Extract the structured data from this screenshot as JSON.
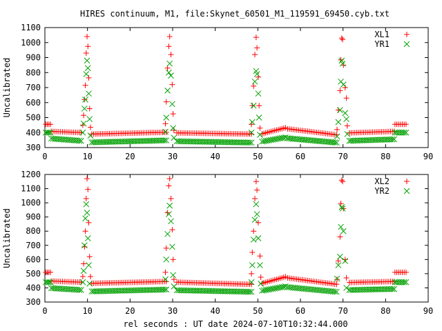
{
  "title": "HIRES continuum, M1, file:Skynet_60501_M1_119591_69450.cyb.txt",
  "xlabel": "rel seconds : UT date 2024-07-10T10:32:44.000",
  "chart_data": [
    {
      "type": "scatter",
      "title": "",
      "xlabel": "",
      "ylabel": "Uncalibrated",
      "xlim": [
        0,
        90
      ],
      "ylim": [
        300,
        1100
      ],
      "xticks": [
        "0",
        "10",
        "20",
        "30",
        "40",
        "50",
        "60",
        "70",
        "80",
        "90"
      ],
      "yticks": [
        "300",
        "400",
        "500",
        "600",
        "700",
        "800",
        "900",
        "1000",
        "1100"
      ],
      "legend_position": "top-right",
      "grid": false,
      "series": [
        {
          "name": "XL1",
          "marker": "plus",
          "color": "#ff0000",
          "segments": [
            {
              "x0": 0.2,
              "x1": 1.3,
              "y0": 455,
              "y1": 455,
              "n": 4
            },
            {
              "x0": 1.5,
              "x1": 8.5,
              "y0": 408,
              "y1": 400,
              "n": 17
            },
            {
              "x0": 11.0,
              "x1": 28.5,
              "y0": 390,
              "y1": 402,
              "n": 43
            },
            {
              "x0": 31.0,
              "x1": 48.5,
              "y0": 398,
              "y1": 390,
              "n": 43
            },
            {
              "x0": 51.0,
              "x1": 56.5,
              "y0": 392,
              "y1": 432,
              "n": 14
            },
            {
              "x0": 57.0,
              "x1": 68.5,
              "y0": 425,
              "y1": 385,
              "n": 28
            },
            {
              "x0": 71.5,
              "x1": 82.0,
              "y0": 398,
              "y1": 408,
              "n": 26
            },
            {
              "x0": 82.2,
              "x1": 84.8,
              "y0": 455,
              "y1": 455,
              "n": 7
            }
          ],
          "points": [
            [
              8.9,
              450
            ],
            [
              9.1,
              515
            ],
            [
              9.3,
              620
            ],
            [
              9.5,
              715
            ],
            [
              9.7,
              930
            ],
            [
              9.9,
              1040
            ],
            [
              10.1,
              975
            ],
            [
              10.3,
              765
            ],
            [
              10.5,
              560
            ],
            [
              10.7,
              435
            ],
            [
              28.3,
              460
            ],
            [
              28.5,
              605
            ],
            [
              28.8,
              830
            ],
            [
              29.1,
              975
            ],
            [
              29.3,
              1040
            ],
            [
              29.6,
              920
            ],
            [
              29.9,
              720
            ],
            [
              30.1,
              525
            ],
            [
              30.3,
              415
            ],
            [
              48.5,
              455
            ],
            [
              48.7,
              580
            ],
            [
              49.0,
              710
            ],
            [
              49.3,
              920
            ],
            [
              49.6,
              1035
            ],
            [
              49.8,
              965
            ],
            [
              50.1,
              770
            ],
            [
              50.3,
              580
            ],
            [
              50.5,
              430
            ],
            [
              68.6,
              420
            ],
            [
              68.9,
              550
            ],
            [
              69.3,
              680
            ],
            [
              69.5,
              885
            ],
            [
              69.7,
              1030
            ],
            [
              69.9,
              1020
            ],
            [
              70.1,
              850
            ],
            [
              70.5,
              700
            ],
            [
              70.8,
              630
            ],
            [
              71.0,
              445
            ]
          ]
        },
        {
          "name": "YR1",
          "marker": "cross",
          "color": "#00a000",
          "segments": [
            {
              "x0": 0.2,
              "x1": 1.3,
              "y0": 400,
              "y1": 400,
              "n": 4
            },
            {
              "x0": 1.5,
              "x1": 8.5,
              "y0": 360,
              "y1": 345,
              "n": 17
            },
            {
              "x0": 11.0,
              "x1": 28.5,
              "y0": 335,
              "y1": 348,
              "n": 43
            },
            {
              "x0": 31.0,
              "x1": 48.5,
              "y0": 342,
              "y1": 333,
              "n": 43
            },
            {
              "x0": 51.0,
              "x1": 56.5,
              "y0": 340,
              "y1": 368,
              "n": 14
            },
            {
              "x0": 57.0,
              "x1": 68.5,
              "y0": 362,
              "y1": 333,
              "n": 28
            },
            {
              "x0": 71.5,
              "x1": 82.0,
              "y0": 345,
              "y1": 355,
              "n": 26
            },
            {
              "x0": 82.2,
              "x1": 84.8,
              "y0": 400,
              "y1": 400,
              "n": 7
            }
          ],
          "points": [
            [
              8.9,
              400
            ],
            [
              9.1,
              460
            ],
            [
              9.3,
              560
            ],
            [
              9.5,
              620
            ],
            [
              9.7,
              790
            ],
            [
              9.9,
              880
            ],
            [
              10.1,
              830
            ],
            [
              10.3,
              660
            ],
            [
              10.5,
              490
            ],
            [
              10.7,
              380
            ],
            [
              28.3,
              405
            ],
            [
              28.5,
              500
            ],
            [
              28.8,
              680
            ],
            [
              29.1,
              800
            ],
            [
              29.3,
              860
            ],
            [
              29.6,
              780
            ],
            [
              29.9,
              590
            ],
            [
              30.1,
              430
            ],
            [
              30.3,
              365
            ],
            [
              48.5,
              400
            ],
            [
              48.7,
              470
            ],
            [
              49.0,
              580
            ],
            [
              49.3,
              740
            ],
            [
              49.6,
              810
            ],
            [
              49.8,
              790
            ],
            [
              50.1,
              660
            ],
            [
              50.3,
              500
            ],
            [
              50.5,
              385
            ],
            [
              68.6,
              375
            ],
            [
              68.9,
              470
            ],
            [
              69.3,
              550
            ],
            [
              69.5,
              740
            ],
            [
              69.7,
              880
            ],
            [
              69.9,
              860
            ],
            [
              70.1,
              720
            ],
            [
              70.5,
              530
            ],
            [
              70.8,
              490
            ],
            [
              71.0,
              390
            ]
          ]
        }
      ]
    },
    {
      "type": "scatter",
      "title": "",
      "xlabel": "",
      "ylabel": "Uncalibrated",
      "xlim": [
        0,
        90
      ],
      "ylim": [
        300,
        1200
      ],
      "xticks": [
        "0",
        "10",
        "20",
        "30",
        "40",
        "50",
        "60",
        "70",
        "80",
        "90"
      ],
      "yticks": [
        "300",
        "400",
        "500",
        "600",
        "700",
        "800",
        "900",
        "1000",
        "1100",
        "1200"
      ],
      "legend_position": "top-right",
      "grid": false,
      "series": [
        {
          "name": "XL2",
          "marker": "plus",
          "color": "#ff0000",
          "segments": [
            {
              "x0": 0.2,
              "x1": 1.3,
              "y0": 510,
              "y1": 510,
              "n": 4
            },
            {
              "x0": 1.5,
              "x1": 8.5,
              "y0": 448,
              "y1": 440,
              "n": 17
            },
            {
              "x0": 11.0,
              "x1": 28.5,
              "y0": 432,
              "y1": 445,
              "n": 43
            },
            {
              "x0": 31.0,
              "x1": 48.5,
              "y0": 440,
              "y1": 425,
              "n": 43
            },
            {
              "x0": 51.0,
              "x1": 56.5,
              "y0": 432,
              "y1": 478,
              "n": 14
            },
            {
              "x0": 57.0,
              "x1": 68.5,
              "y0": 470,
              "y1": 425,
              "n": 28
            },
            {
              "x0": 71.5,
              "x1": 82.0,
              "y0": 438,
              "y1": 445,
              "n": 26
            },
            {
              "x0": 82.2,
              "x1": 84.8,
              "y0": 510,
              "y1": 510,
              "n": 7
            }
          ],
          "points": [
            [
              8.9,
              480
            ],
            [
              9.1,
              570
            ],
            [
              9.3,
              690
            ],
            [
              9.5,
              800
            ],
            [
              9.7,
              1030
            ],
            [
              9.9,
              1170
            ],
            [
              10.1,
              1095
            ],
            [
              10.3,
              860
            ],
            [
              10.5,
              620
            ],
            [
              10.7,
              480
            ],
            [
              28.3,
              510
            ],
            [
              28.5,
              680
            ],
            [
              28.8,
              930
            ],
            [
              29.1,
              1120
            ],
            [
              29.3,
              1170
            ],
            [
              29.6,
              1030
            ],
            [
              29.9,
              810
            ],
            [
              30.1,
              600
            ],
            [
              30.3,
              460
            ],
            [
              48.5,
              500
            ],
            [
              48.7,
              650
            ],
            [
              49.0,
              800
            ],
            [
              49.3,
              1030
            ],
            [
              49.6,
              1150
            ],
            [
              49.8,
              1090
            ],
            [
              50.1,
              860
            ],
            [
              50.5,
              625
            ],
            [
              50.7,
              475
            ],
            [
              68.6,
              460
            ],
            [
              68.9,
              590
            ],
            [
              69.3,
              760
            ],
            [
              69.5,
              995
            ],
            [
              69.7,
              1160
            ],
            [
              69.9,
              1150
            ],
            [
              70.1,
              960
            ],
            [
              70.5,
              600
            ],
            [
              70.8,
              470
            ]
          ]
        },
        {
          "name": "YR2",
          "marker": "cross",
          "color": "#00a000",
          "segments": [
            {
              "x0": 0.2,
              "x1": 1.3,
              "y0": 440,
              "y1": 440,
              "n": 4
            },
            {
              "x0": 1.5,
              "x1": 8.5,
              "y0": 398,
              "y1": 385,
              "n": 17
            },
            {
              "x0": 11.0,
              "x1": 28.5,
              "y0": 375,
              "y1": 388,
              "n": 43
            },
            {
              "x0": 31.0,
              "x1": 48.5,
              "y0": 383,
              "y1": 372,
              "n": 43
            },
            {
              "x0": 51.0,
              "x1": 56.5,
              "y0": 380,
              "y1": 410,
              "n": 14
            },
            {
              "x0": 57.0,
              "x1": 68.5,
              "y0": 405,
              "y1": 372,
              "n": 28
            },
            {
              "x0": 71.5,
              "x1": 82.0,
              "y0": 385,
              "y1": 392,
              "n": 26
            },
            {
              "x0": 82.2,
              "x1": 84.8,
              "y0": 440,
              "y1": 440,
              "n": 7
            }
          ],
          "points": [
            [
              8.9,
              440
            ],
            [
              9.1,
              520
            ],
            [
              9.3,
              700
            ],
            [
              9.5,
              890
            ],
            [
              9.7,
              990
            ],
            [
              9.9,
              930
            ],
            [
              10.1,
              750
            ],
            [
              10.3,
              560
            ],
            [
              10.5,
              430
            ],
            [
              28.3,
              460
            ],
            [
              28.5,
              600
            ],
            [
              28.8,
              780
            ],
            [
              29.1,
              920
            ],
            [
              29.3,
              980
            ],
            [
              29.6,
              870
            ],
            [
              29.9,
              690
            ],
            [
              30.1,
              490
            ],
            [
              30.3,
              410
            ],
            [
              48.5,
              440
            ],
            [
              48.7,
              560
            ],
            [
              49.0,
              740
            ],
            [
              49.3,
              880
            ],
            [
              49.6,
              990
            ],
            [
              49.8,
              920
            ],
            [
              50.1,
              750
            ],
            [
              50.5,
              560
            ],
            [
              50.7,
              430
            ],
            [
              68.6,
              465
            ],
            [
              68.9,
              560
            ],
            [
              69.3,
              620
            ],
            [
              69.5,
              830
            ],
            [
              69.7,
              970
            ],
            [
              69.9,
              960
            ],
            [
              70.1,
              800
            ],
            [
              70.5,
              590
            ],
            [
              70.8,
              400
            ]
          ]
        }
      ]
    }
  ]
}
